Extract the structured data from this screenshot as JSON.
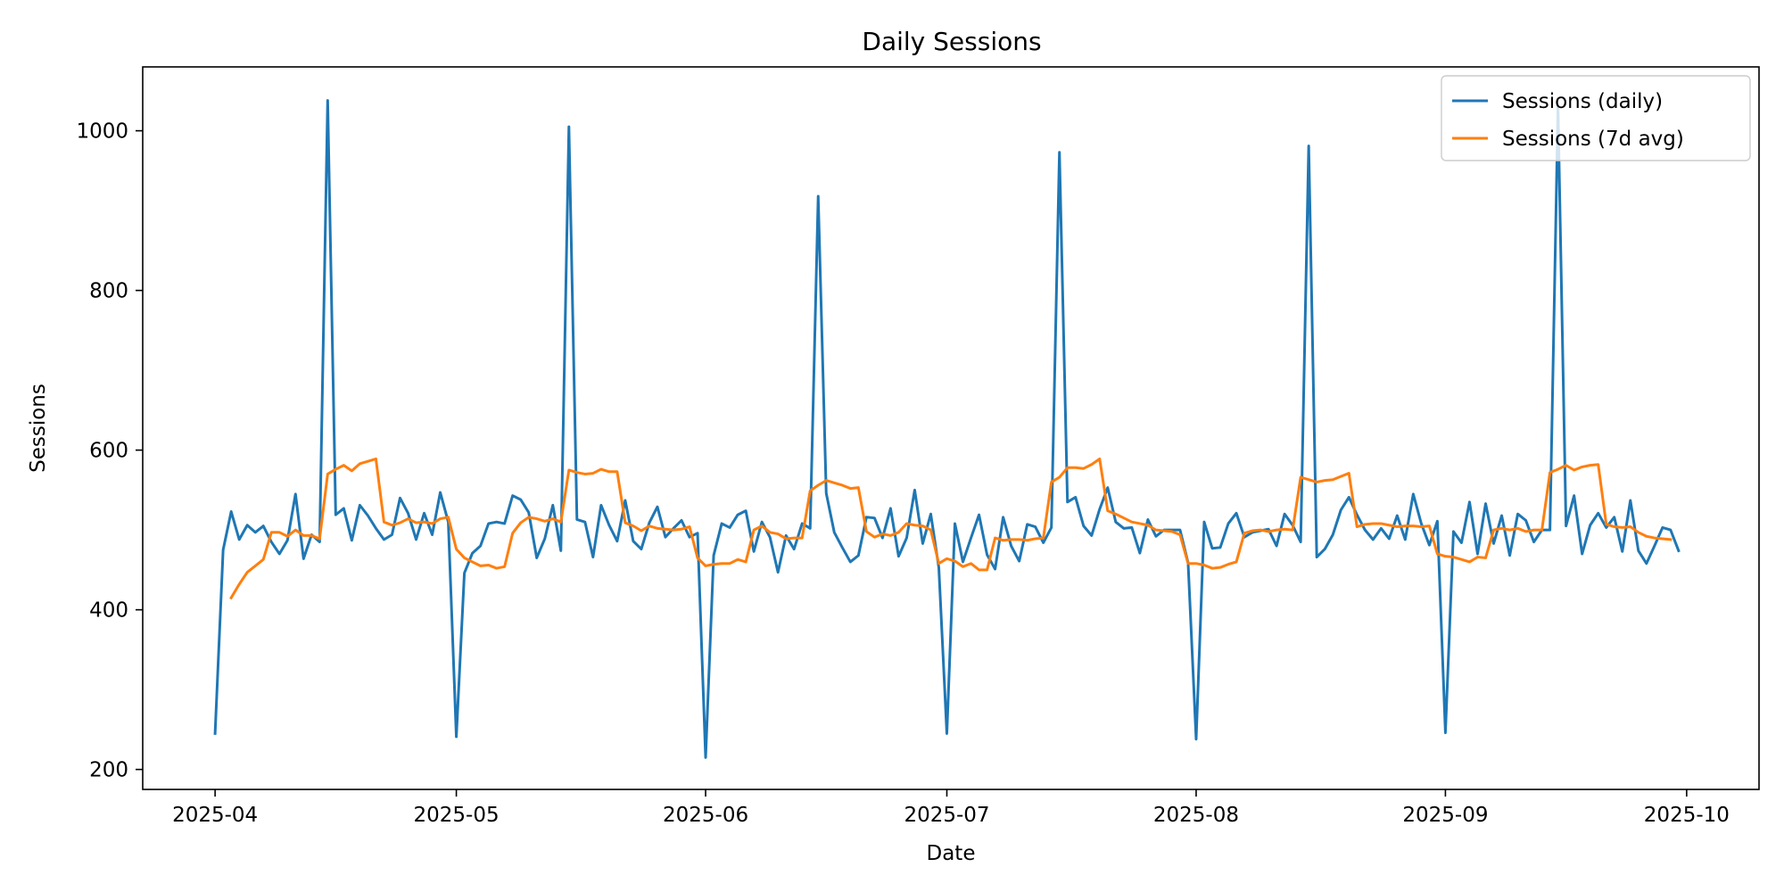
{
  "chart_data": {
    "type": "line",
    "title": "Daily Sessions",
    "xlabel": "Date",
    "ylabel": "Sessions",
    "x_range": [
      "2025-03-23",
      "2025-10-10"
    ],
    "ylim": [
      175,
      1080
    ],
    "x_ticks": [
      {
        "date": "2025-04-01",
        "label": "2025-04"
      },
      {
        "date": "2025-05-01",
        "label": "2025-05"
      },
      {
        "date": "2025-06-01",
        "label": "2025-06"
      },
      {
        "date": "2025-07-01",
        "label": "2025-07"
      },
      {
        "date": "2025-08-01",
        "label": "2025-08"
      },
      {
        "date": "2025-09-01",
        "label": "2025-09"
      },
      {
        "date": "2025-10-01",
        "label": "2025-10"
      }
    ],
    "y_ticks": [
      200,
      400,
      600,
      800,
      1000
    ],
    "grid": false,
    "legend": "top-right",
    "series": [
      {
        "name": "Sessions (daily)",
        "color": "#1f77b4",
        "start_date": "2025-04-01",
        "values": [
          245,
          475,
          523,
          488,
          506,
          497,
          505,
          485,
          470,
          487,
          545,
          464,
          494,
          485,
          1038,
          519,
          527,
          487,
          531,
          518,
          502,
          488,
          494,
          540,
          521,
          488,
          521,
          494,
          547,
          510,
          241,
          446,
          471,
          480,
          508,
          510,
          508,
          543,
          538,
          522,
          465,
          489,
          531,
          474,
          1005,
          513,
          510,
          466,
          531,
          506,
          486,
          537,
          486,
          476,
          509,
          529,
          491,
          502,
          512,
          491,
          496,
          215,
          468,
          508,
          503,
          519,
          524,
          473,
          510,
          491,
          447,
          493,
          476,
          508,
          502,
          918,
          546,
          497,
          478,
          460,
          468,
          516,
          515,
          490,
          527,
          467,
          490,
          550,
          483,
          520,
          453,
          245,
          508,
          460,
          490,
          519,
          469,
          451,
          516,
          480,
          461,
          507,
          504,
          484,
          503,
          973,
          535,
          541,
          505,
          493,
          526,
          553,
          510,
          502,
          503,
          471,
          513,
          492,
          500,
          500,
          500,
          459,
          238,
          510,
          477,
          478,
          508,
          521,
          491,
          497,
          499,
          501,
          480,
          520,
          506,
          485,
          981,
          466,
          476,
          494,
          525,
          541,
          519,
          500,
          488,
          502,
          489,
          518,
          488,
          545,
          508,
          481,
          511,
          246,
          498,
          484,
          535,
          470,
          533,
          483,
          518,
          468,
          520,
          512,
          485,
          500,
          500,
          1030,
          505,
          543,
          470,
          506,
          521,
          503,
          516,
          473,
          537,
          474,
          458,
          480,
          503,
          500,
          474
        ]
      },
      {
        "name": "Sessions (7d avg)",
        "color": "#ff7f0e",
        "start_date": "2025-04-03",
        "values": [
          415,
          432,
          447,
          455,
          463,
          497,
          497,
          492,
          500,
          493,
          493,
          489,
          570,
          576,
          581,
          574,
          583,
          586,
          589,
          510,
          506,
          509,
          514,
          509,
          510,
          508,
          514,
          516,
          476,
          465,
          460,
          455,
          456,
          452,
          454,
          496,
          509,
          516,
          514,
          511,
          514,
          510,
          575,
          572,
          570,
          571,
          576,
          573,
          573,
          509,
          505,
          499,
          505,
          502,
          501,
          500,
          501,
          504,
          465,
          455,
          457,
          458,
          458,
          463,
          460,
          500,
          505,
          497,
          495,
          489,
          490,
          490,
          549,
          556,
          562,
          559,
          556,
          552,
          553,
          498,
          491,
          495,
          493,
          497,
          508,
          506,
          505,
          500,
          458,
          464,
          461,
          454,
          458,
          450,
          450,
          490,
          487,
          488,
          488,
          487,
          489,
          490,
          560,
          566,
          578,
          578,
          577,
          582,
          589,
          524,
          520,
          515,
          510,
          508,
          506,
          500,
          499,
          498,
          494,
          458,
          458,
          456,
          452,
          453,
          457,
          460,
          496,
          499,
          500,
          498,
          500,
          501,
          500,
          566,
          563,
          560,
          562,
          563,
          567,
          571,
          504,
          507,
          508,
          508,
          506,
          504,
          505,
          505,
          504,
          505,
          470,
          467,
          466,
          463,
          460,
          466,
          465,
          500,
          502,
          500,
          502,
          498,
          500,
          500,
          572,
          576,
          581,
          575,
          579,
          581,
          582,
          507,
          504,
          503,
          504,
          497,
          492,
          490,
          489,
          488
        ]
      }
    ]
  }
}
